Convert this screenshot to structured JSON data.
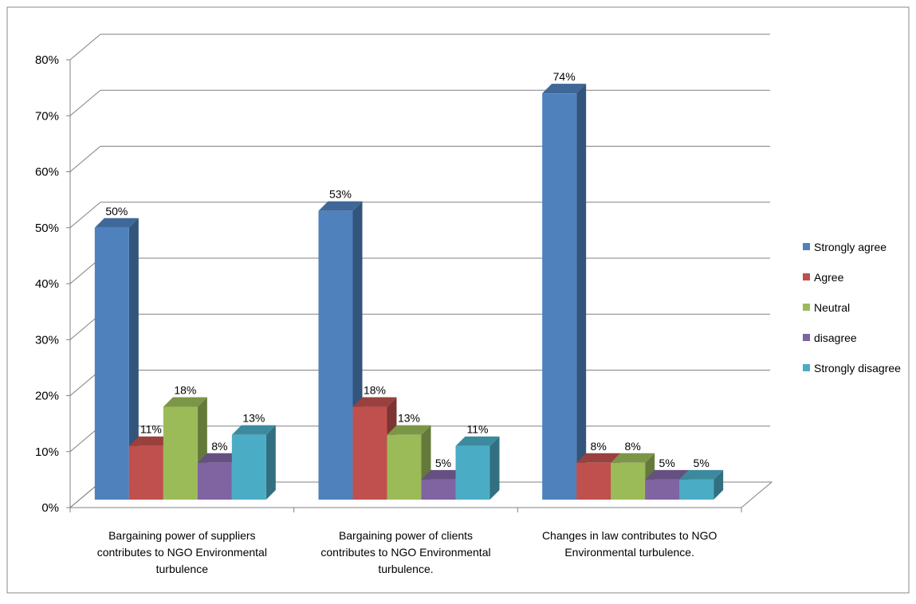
{
  "chart_data": {
    "type": "bar",
    "categories": [
      [
        "Bargaining power of suppliers",
        "contributes to NGO Environmental",
        "turbulence"
      ],
      [
        "Bargaining power of clients",
        "contributes to NGO Environmental",
        "turbulence."
      ],
      [
        "Changes in law contributes to NGO",
        "Environmental turbulence."
      ]
    ],
    "series": [
      {
        "name": "Strongly agree",
        "color": "#4F81BD",
        "values": [
          50,
          53,
          74
        ]
      },
      {
        "name": "Agree",
        "color": "#C0504D",
        "values": [
          11,
          18,
          8
        ]
      },
      {
        "name": "Neutral",
        "color": "#9BBB59",
        "values": [
          18,
          13,
          8
        ]
      },
      {
        "name": "disagree",
        "color": "#8064A2",
        "values": [
          8,
          5,
          5
        ]
      },
      {
        "name": "Strongly disagree",
        "color": "#4BACC6",
        "values": [
          13,
          11,
          5
        ]
      }
    ],
    "data_labels": [
      [
        "50%",
        "53%",
        "74%"
      ],
      [
        "11%",
        "18%",
        "8%"
      ],
      [
        "18%",
        "13%",
        "8%"
      ],
      [
        "8%",
        "5%",
        "5%"
      ],
      [
        "13%",
        "11%",
        "5%"
      ]
    ],
    "ylim": [
      0,
      80
    ],
    "y_ticks": [
      0,
      10,
      20,
      30,
      40,
      50,
      60,
      70,
      80
    ],
    "y_tick_labels": [
      "0%",
      "10%",
      "20%",
      "30%",
      "40%",
      "50%",
      "60%",
      "70%",
      "80%"
    ],
    "grid": true,
    "legend_position": "right",
    "projection": "3d-clustered-column"
  }
}
